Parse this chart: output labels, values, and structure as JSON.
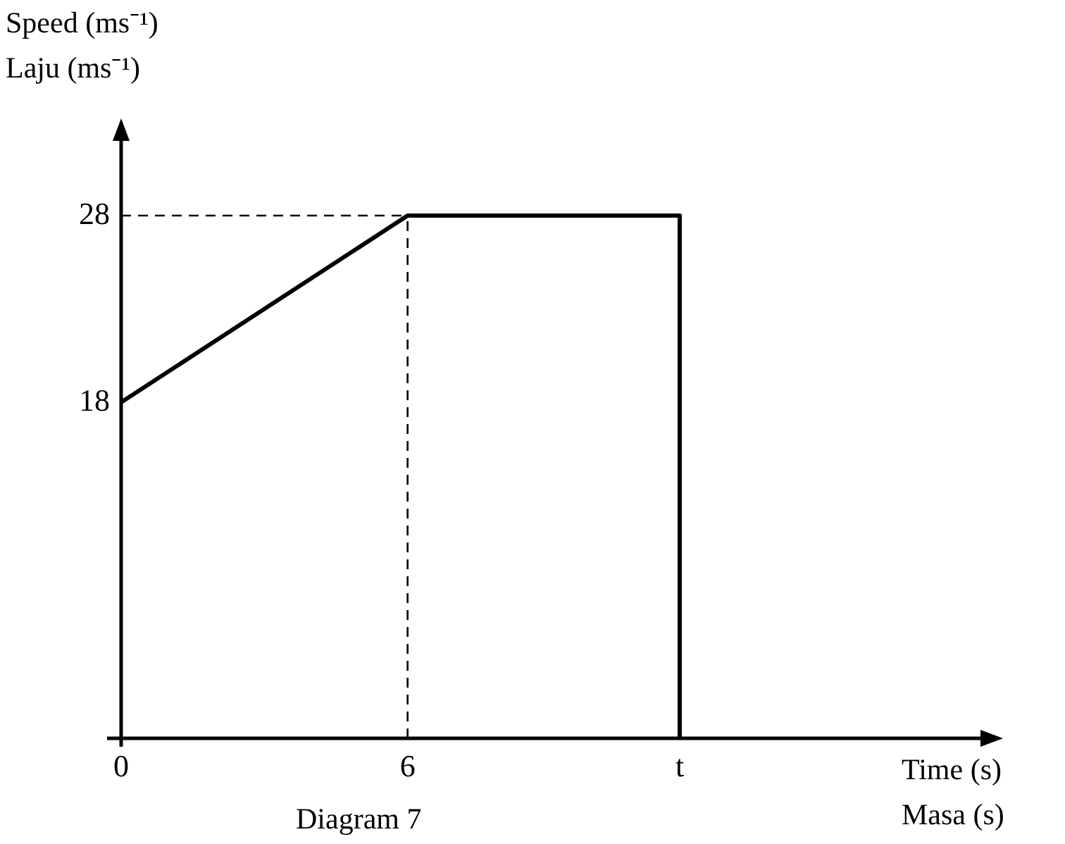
{
  "chart_data": {
    "type": "line",
    "ylabel": "Speed (ms⁻¹)\nLaju (ms⁻¹)",
    "xlabel": "Time (s)\nMasa (s)",
    "annotations": [
      "Diagram 7"
    ],
    "series": [
      {
        "color": "#000000",
        "x": [
          0,
          6,
          11.7,
          11.7
        ],
        "values": [
          18,
          28,
          28,
          0
        ]
      }
    ],
    "xlim": [
      0,
      18
    ],
    "xticks": [
      0,
      {
        "value": 6,
        "label": "6"
      },
      {
        "value": 11.7,
        "label": "t"
      }
    ],
    "ylim": [
      0,
      32
    ],
    "yticks": [
      18,
      28
    ],
    "ref_lines": [
      {
        "axis": "x",
        "value": 6,
        "line_style": "dashed",
        "color": "#000000"
      },
      {
        "axis": "y",
        "value": 28,
        "line_style": "dashed",
        "color": "#000000"
      }
    ],
    "grid": false,
    "legend": false,
    "marker": "none",
    "line_style": "solid"
  }
}
